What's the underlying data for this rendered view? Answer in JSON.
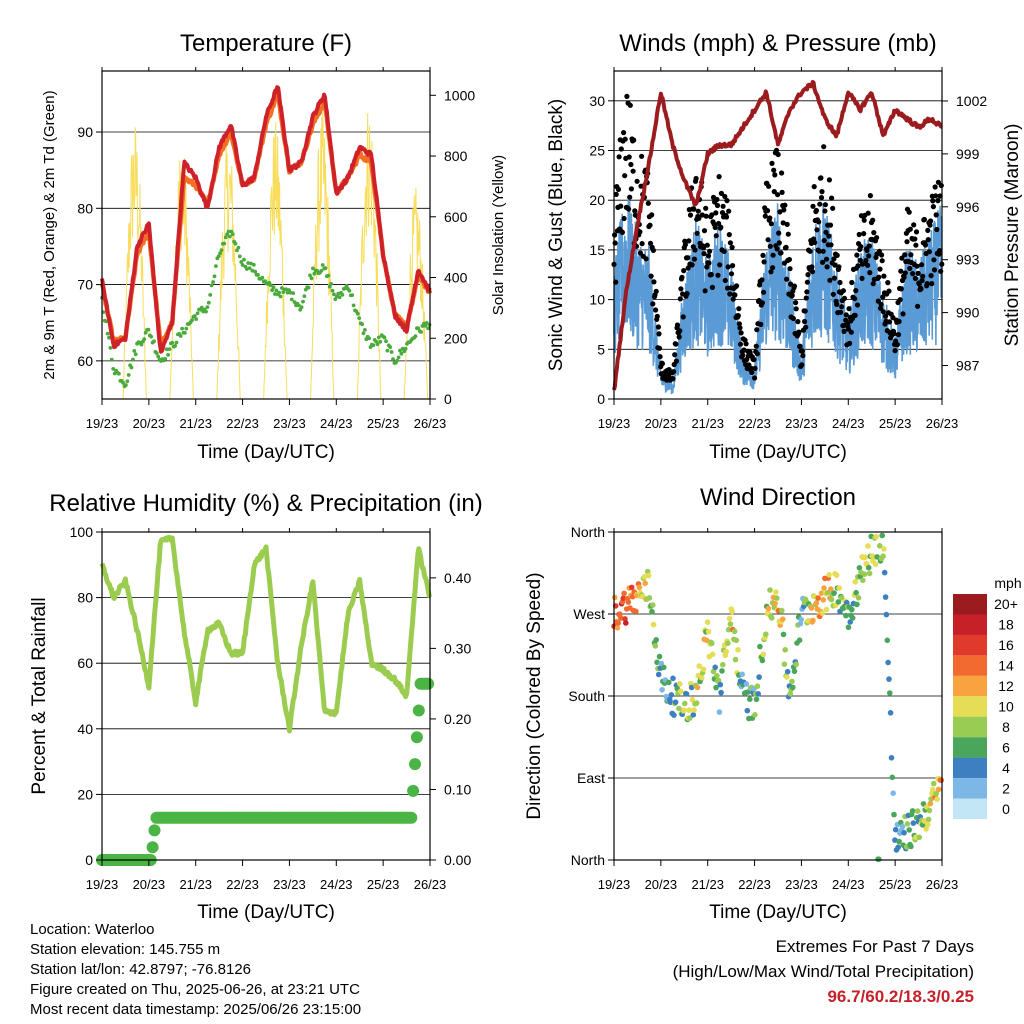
{
  "panels": {
    "temperature": {
      "title": "Temperature (F)",
      "ylabel": "2m & 9m T (Red, Orange) & 2m Td (Green)",
      "ylabel_right": "Solar Insolation (Yellow)",
      "xlabel": "Time (Day/UTC)"
    },
    "winds": {
      "title": "Winds (mph) & Pressure (mb)",
      "ylabel": "Sonic Wind & Gust (Blue, Black)",
      "ylabel_right": "Station Pressure (Maroon)",
      "xlabel": "Time (Day/UTC)"
    },
    "humidity": {
      "title": "Relative Humidity (%) & Precipitation (in)",
      "ylabel": "Percent & Total Rainfall",
      "xlabel": "Time (Day/UTC)"
    },
    "direction": {
      "title": "Wind Direction",
      "ylabel": "Direction (Colored By Speed)",
      "xlabel": "Time (Day/UTC)",
      "colorbar_title": "mph",
      "colorbar_labels": [
        "20+",
        "18",
        "16",
        "14",
        "12",
        "10",
        "8",
        "6",
        "4",
        "2",
        "0"
      ],
      "colorbar_colors": [
        "#9b1b1e",
        "#c62128",
        "#e03a2c",
        "#f26a30",
        "#f9a340",
        "#e6dd57",
        "#98cc53",
        "#4aa65a",
        "#3d7fc0",
        "#7db7e6",
        "#c3e6f7"
      ]
    }
  },
  "x_ticks": [
    "19/23",
    "20/23",
    "21/23",
    "22/23",
    "23/23",
    "24/23",
    "25/23",
    "26/23"
  ],
  "colors": {
    "t2m": "#cf2129",
    "t9m": "#f36f21",
    "td2m": "#4aaa3c",
    "solar": "#f8dd5c",
    "wind": "#5b9bd5",
    "gust": "#000000",
    "pressure": "#9b1b1e",
    "rh": "#9ccc4f",
    "precip": "#4ab545"
  },
  "chart_data": [
    {
      "type": "line",
      "title": "Temperature (F)",
      "xlabel": "Time (Day/UTC)",
      "ylabel": "2m & 9m T (Red, Orange) & 2m Td (Green)",
      "ylabel_right": "Solar Insolation (Yellow)",
      "x": [
        0,
        0.25,
        0.5,
        0.75,
        1,
        1.25,
        1.5,
        1.75,
        2,
        2.25,
        2.5,
        2.75,
        3,
        3.25,
        3.5,
        3.75,
        4,
        4.25,
        4.5,
        4.75,
        5,
        5.25,
        5.5,
        5.75,
        6,
        6.25,
        6.5,
        6.75,
        7
      ],
      "ylim": [
        55,
        98
      ],
      "yticks": [
        60,
        70,
        80,
        90
      ],
      "y2lim": [
        0,
        1080
      ],
      "y2ticks": [
        0,
        200,
        400,
        600,
        800,
        1000
      ],
      "series": [
        {
          "name": "2m T",
          "values": [
            70.5,
            62,
            63,
            75,
            78,
            61,
            65,
            86,
            84,
            80,
            88,
            91,
            83,
            84,
            92,
            96,
            85,
            86,
            92,
            95,
            82,
            84,
            88,
            87,
            74,
            66,
            64,
            72,
            69
          ]
        },
        {
          "name": "9m T",
          "values": [
            70,
            62.5,
            63,
            74,
            77,
            62,
            65,
            84,
            83,
            80.5,
            87,
            90,
            83,
            84,
            91,
            95,
            85,
            86,
            91,
            94,
            82,
            84,
            87,
            86,
            74,
            66,
            64.5,
            71,
            69
          ]
        },
        {
          "name": "2m Td",
          "values": [
            68,
            59,
            57,
            62,
            64,
            60,
            62,
            64,
            66,
            67,
            74,
            77,
            73,
            72,
            70,
            69,
            69,
            67,
            72,
            72,
            68,
            70,
            65,
            62,
            63,
            60,
            62,
            64,
            65
          ]
        },
        {
          "name": "Solar Insolation",
          "values": [
            0,
            0,
            930,
            0,
            0,
            0,
            870,
            0,
            0,
            40,
            880,
            0,
            0,
            0,
            920,
            0,
            0,
            0,
            950,
            0,
            0,
            0,
            1000,
            0,
            0,
            0,
            700,
            0,
            0
          ]
        }
      ]
    },
    {
      "type": "scatter",
      "title": "Winds (mph) & Pressure (mb)",
      "xlabel": "Time (Day/UTC)",
      "ylabel": "Sonic Wind & Gust (Blue, Black)",
      "ylabel_right": "Station Pressure (Maroon)",
      "x": [
        0,
        0.25,
        0.5,
        0.75,
        1,
        1.25,
        1.5,
        1.75,
        2,
        2.25,
        2.5,
        2.75,
        3,
        3.25,
        3.5,
        3.75,
        4,
        4.25,
        4.5,
        4.75,
        5,
        5.25,
        5.5,
        5.75,
        6,
        6.25,
        6.5,
        6.75,
        7
      ],
      "ylim": [
        0,
        33
      ],
      "yticks": [
        0,
        5,
        10,
        15,
        20,
        25,
        30
      ],
      "y2lim": [
        985.1,
        1003.7
      ],
      "y2ticks": [
        987,
        990,
        993,
        996,
        999,
        1002
      ],
      "series": [
        {
          "name": "Sonic Wind",
          "values": [
            9,
            14,
            11,
            10,
            2,
            1,
            8,
            12,
            9,
            12,
            9,
            3,
            2,
            11,
            13,
            8,
            3,
            12,
            13,
            9,
            5,
            10,
            11,
            7,
            4,
            10,
            9,
            11,
            13
          ]
        },
        {
          "name": "Gust",
          "values": [
            15,
            25,
            20,
            18,
            3,
            2,
            12,
            20,
            14,
            18,
            14,
            5,
            3,
            17,
            20,
            12,
            4,
            17,
            20,
            13,
            7,
            14,
            16,
            11,
            6,
            15,
            13,
            16,
            18
          ]
        },
        {
          "name": "Station Pressure",
          "values": [
            985.5,
            991,
            995,
            998.5,
            1002.5,
            999.5,
            997.5,
            996,
            999,
            999.5,
            999.5,
            1000.5,
            1001.5,
            1002.5,
            999.5,
            1001.5,
            1002.5,
            1003,
            1001,
            1000,
            1002.5,
            1001.5,
            1002.5,
            1000,
            1001.5,
            1001,
            1000.5,
            1001,
            1000.5
          ]
        }
      ]
    },
    {
      "type": "line",
      "title": "Relative Humidity (%) & Precipitation (in)",
      "xlabel": "Time (Day/UTC)",
      "ylabel": "Percent & Total Rainfall",
      "x": [
        0,
        0.25,
        0.5,
        0.75,
        1,
        1.25,
        1.5,
        1.75,
        2,
        2.25,
        2.5,
        2.75,
        3,
        3.25,
        3.5,
        3.75,
        4,
        4.25,
        4.5,
        4.75,
        5,
        5.25,
        5.5,
        5.75,
        6,
        6.25,
        6.5,
        6.75,
        7
      ],
      "ylim": [
        0,
        100
      ],
      "yticks": [
        0,
        20,
        40,
        60,
        80,
        100
      ],
      "y2lim": [
        0,
        0.465
      ],
      "y2ticks": [
        0.0,
        0.1,
        0.2,
        0.3,
        0.4
      ],
      "series": [
        {
          "name": "Relative Humidity",
          "values": [
            90,
            80,
            85,
            70,
            53,
            97,
            98,
            70,
            48,
            70,
            72,
            63,
            63,
            90,
            95,
            60,
            40,
            65,
            85,
            45,
            45,
            75,
            85,
            60,
            58,
            55,
            50,
            95,
            80
          ]
        },
        {
          "name": "Total Rainfall",
          "values": [
            0,
            0,
            0,
            0,
            0,
            0.06,
            0.06,
            0.06,
            0.06,
            0.06,
            0.06,
            0.06,
            0.06,
            0.06,
            0.06,
            0.06,
            0.06,
            0.06,
            0.06,
            0.06,
            0.06,
            0.06,
            0.06,
            0.06,
            0.06,
            0.06,
            0.06,
            0.25,
            0.25
          ]
        }
      ]
    },
    {
      "type": "scatter",
      "title": "Wind Direction",
      "xlabel": "Time (Day/UTC)",
      "ylabel": "Direction (Colored By Speed)",
      "x": [
        0,
        0.25,
        0.5,
        0.75,
        1,
        1.25,
        1.5,
        1.75,
        2,
        2.25,
        2.5,
        2.75,
        3,
        3.25,
        3.5,
        3.75,
        4,
        4.25,
        4.5,
        4.75,
        5,
        5.25,
        5.5,
        5.75,
        6,
        6.25,
        6.5,
        6.75,
        7
      ],
      "ylim": [
        0,
        360
      ],
      "yticks": [
        "North",
        "East",
        "South",
        "West",
        "North"
      ],
      "series": [
        {
          "name": "Direction",
          "values": [
            270,
            280,
            290,
            300,
            200,
            180,
            170,
            180,
            250,
            180,
            270,
            180,
            170,
            270,
            290,
            180,
            270,
            280,
            290,
            300,
            270,
            310,
            340,
            350,
            20,
            30,
            40,
            60,
            80
          ]
        },
        {
          "name": "Speed",
          "values": [
            14,
            16,
            12,
            10,
            4,
            6,
            7,
            8,
            10,
            5,
            12,
            4,
            5,
            9,
            11,
            6,
            4,
            10,
            12,
            8,
            6,
            9,
            8,
            7,
            4,
            6,
            7,
            9,
            12
          ]
        }
      ]
    }
  ],
  "info": {
    "location": "Location: Waterloo",
    "elevation": "Station elevation: 145.755 m",
    "latlon": "Station lat/lon: 42.8797; -76.8126",
    "created": "Figure created on Thu, 2025-06-26, at 23:21 UTC",
    "timestamp": "Most recent data timestamp: 2025/06/26 23:15:00"
  },
  "extremes": {
    "title": "Extremes For Past 7 Days",
    "subtitle": "(High/Low/Max Wind/Total Precipitation)",
    "values": "96.7/60.2/18.3/0.25"
  }
}
